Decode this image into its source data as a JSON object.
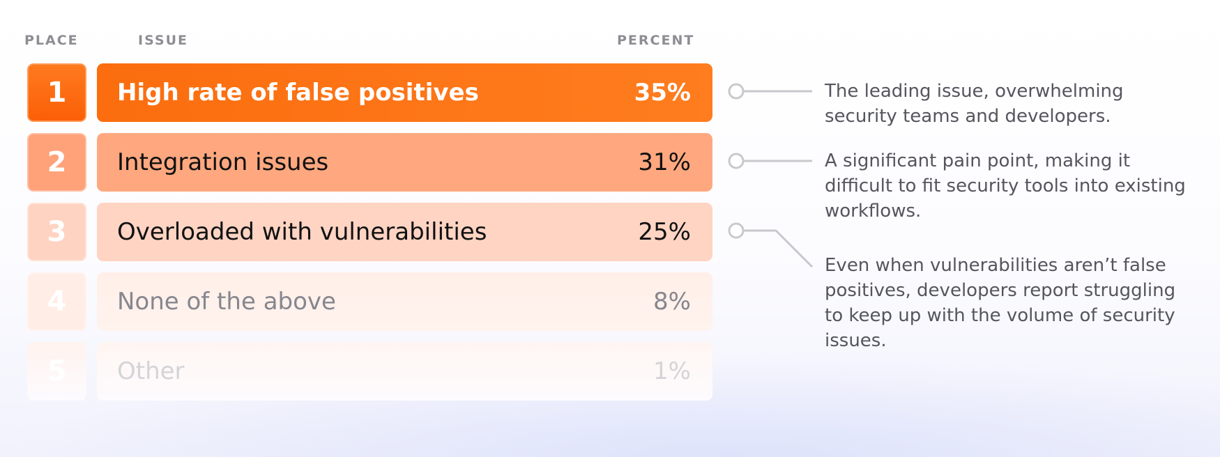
{
  "headers": {
    "place": "PLACE",
    "issue": "ISSUE",
    "percent": "PERCENT"
  },
  "chart_data": {
    "type": "bar",
    "categories": [
      "High rate of false positives",
      "Integration issues",
      "Overloaded with vulnerabilities",
      "None of the above",
      "Other"
    ],
    "ranks": [
      "1",
      "2",
      "3",
      "4",
      "5"
    ],
    "values": [
      35,
      31,
      25,
      8,
      1
    ],
    "value_labels": [
      "35%",
      "31%",
      "25%",
      "8%",
      "1%"
    ],
    "xlabel": "",
    "ylabel": ""
  },
  "annotations": [
    "The leading issue, overwhelming security teams and developers.",
    "A significant pain point, making it difficult to fit security tools into existing workflows.",
    "Even when vulnerabilities aren’t false positives, developers report struggling to keep up with the volume of security issues."
  ],
  "colors": {
    "rank1": "#ff6d0f",
    "rank2": "#ffa27a",
    "rank3": "#ffd3c2",
    "rank4": "#ffede6",
    "rank5": "#fff7f3",
    "header": "#8d8d94",
    "annotation_text": "#55555d",
    "connector": "#c8c8cd"
  }
}
